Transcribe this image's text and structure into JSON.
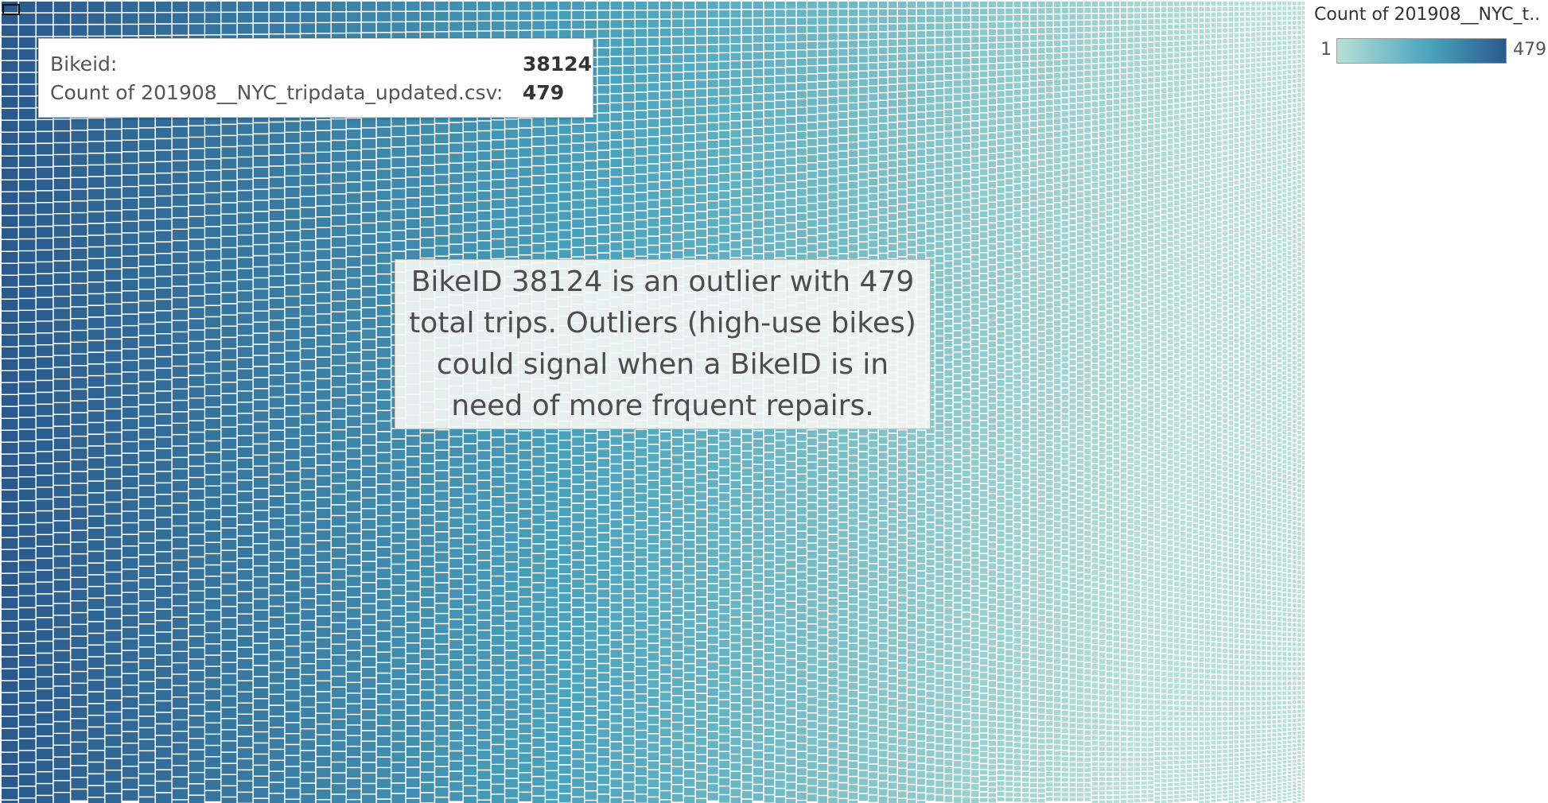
{
  "chart_data": {
    "type": "treemap",
    "measure": "Count of 201908__NYC_tripdata_updated.csv",
    "dimension": "Bikeid",
    "value_range": [
      1,
      479
    ],
    "max_item": {
      "bikeid": "38124",
      "count": 479
    },
    "color_scale": {
      "low": "#b7e0d6",
      "mid": "#4aa3bd",
      "high": "#2a5a8c"
    },
    "legend": {
      "title": "Count of 201908__NYC_t..",
      "min_label": "1",
      "max_label": "479",
      "placement": "top-right"
    }
  },
  "tooltip": {
    "rows": [
      {
        "label": "Bikeid:",
        "value": "38124"
      },
      {
        "label": "Count of 201908__NYC_tripdata_updated.csv:",
        "value": "479"
      }
    ]
  },
  "annotation": {
    "text": "BikeID 38124 is an outlier with 479 total trips. Outliers (high-use bikes) could signal when a BikeID is in need of more frquent repairs."
  }
}
